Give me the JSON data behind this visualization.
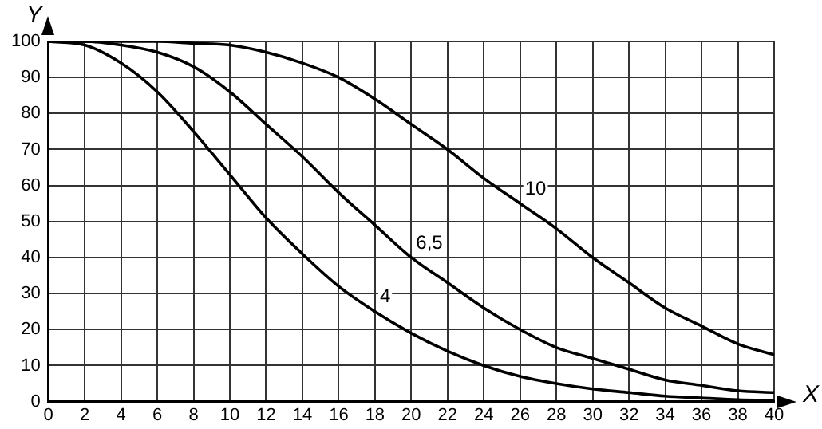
{
  "chart_data": {
    "type": "line",
    "xlabel": "X",
    "ylabel": "Y",
    "x": [
      0,
      2,
      4,
      6,
      8,
      10,
      12,
      14,
      16,
      18,
      20,
      22,
      24,
      26,
      28,
      30,
      32,
      34,
      36,
      38,
      40
    ],
    "series": [
      {
        "name": "4",
        "color": "#000000",
        "values": [
          100,
          99,
          94,
          86,
          75,
          63,
          51,
          41,
          32,
          25,
          19,
          14,
          10,
          7,
          5,
          3.5,
          2.5,
          1.5,
          1,
          0.5,
          0.3
        ]
      },
      {
        "name": "6,5",
        "color": "#000000",
        "values": [
          100,
          100,
          99,
          97,
          93,
          86,
          77,
          68,
          58,
          49,
          40,
          33,
          26,
          20,
          15,
          12,
          9,
          6,
          4.5,
          3,
          2.5
        ]
      },
      {
        "name": "10",
        "color": "#000000",
        "values": [
          100,
          100,
          100,
          100,
          99.5,
          99,
          97,
          94,
          90,
          84,
          77,
          70,
          62,
          55,
          48,
          40,
          33,
          26,
          21,
          16,
          13
        ]
      }
    ],
    "xlim": [
      0,
      40
    ],
    "xticks": [
      0,
      2,
      4,
      6,
      8,
      10,
      12,
      14,
      16,
      18,
      20,
      22,
      24,
      26,
      28,
      30,
      32,
      34,
      36,
      38,
      40
    ],
    "ylim": [
      0,
      100
    ],
    "yticks": [
      0,
      10,
      20,
      30,
      40,
      50,
      60,
      70,
      80,
      90,
      100
    ],
    "grid": true,
    "legend": false,
    "marker": "none",
    "line_style": "solid"
  }
}
